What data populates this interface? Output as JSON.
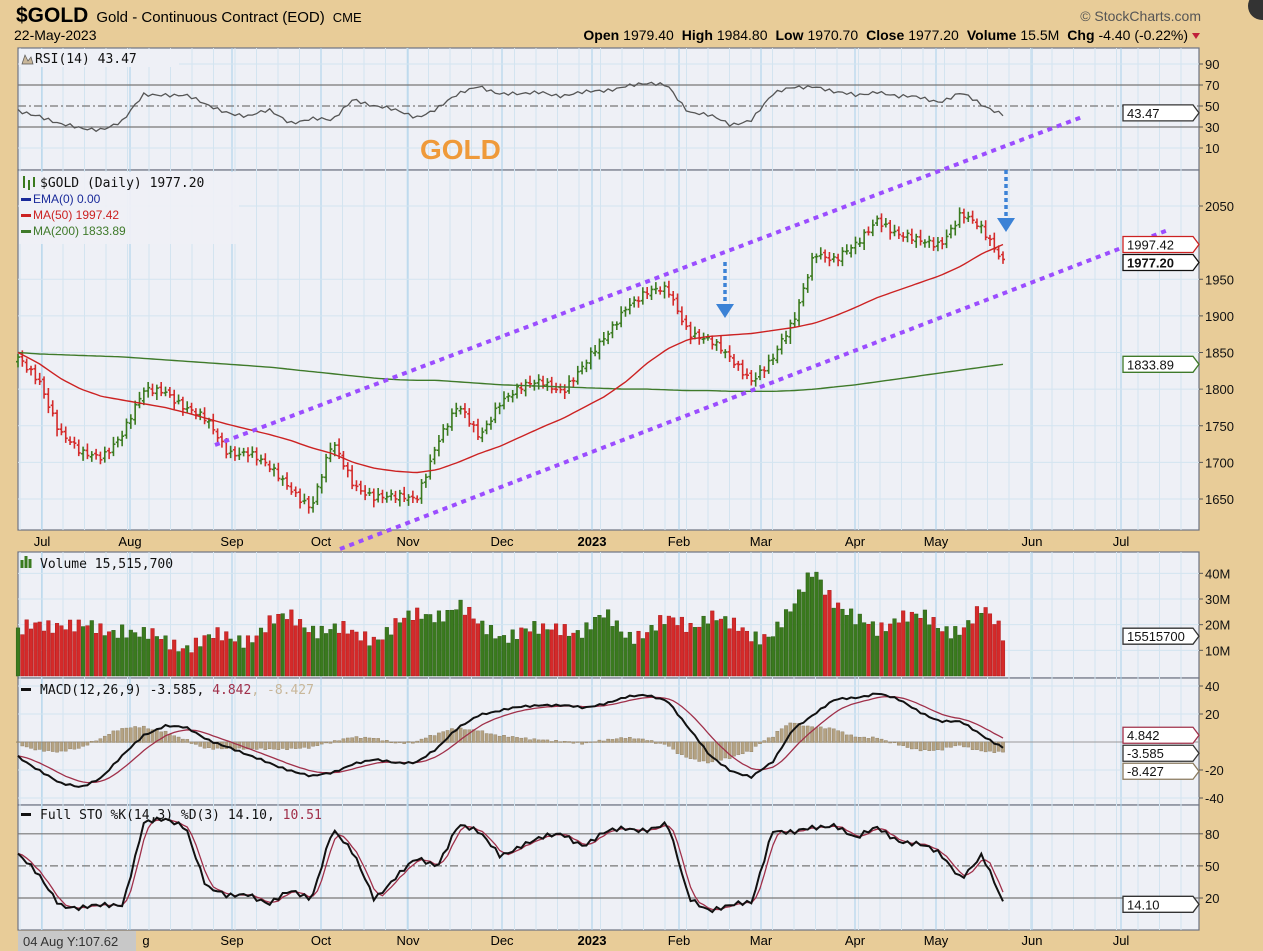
{
  "header": {
    "symbol": "$GOLD",
    "name": "Gold - Continuous Contract (EOD)",
    "exchange": "CME",
    "date": "22-May-2023",
    "copyright": "© StockCharts.com",
    "open_label": "Open",
    "open": "1979.40",
    "high_label": "High",
    "high": "1984.80",
    "low_label": "Low",
    "low": "1970.70",
    "close_label": "Close",
    "close": "1977.20",
    "volume_label": "Volume",
    "volume": "15.5M",
    "chg_label": "Chg",
    "chg": "-4.40 (-0.22%)"
  },
  "annotation": "GOLD",
  "crosshair_readout": "04 Aug Y:107.62",
  "colors": {
    "up": "#3a7a1e",
    "down": "#d42a2a",
    "ma50": "#cc2222",
    "ma200": "#3f7a2a",
    "trend": "#9b4dff",
    "arrow": "#3b82d6",
    "bg": "#e8cc98",
    "panel": "#eef0f6"
  },
  "chart_data": {
    "type": "line",
    "x_tick_labels": [
      "Jul",
      "Aug",
      "Sep",
      "Oct",
      "Nov",
      "Dec",
      "2023",
      "Feb",
      "Mar",
      "Apr",
      "May",
      "Jun",
      "Jul"
    ],
    "bottom_tick_labels": [
      "g",
      "Sep",
      "Oct",
      "Nov",
      "Dec",
      "2023",
      "Feb",
      "Mar",
      "Apr",
      "May",
      "Jun",
      "Jul"
    ],
    "price": {
      "legend": "$GOLD (Daily) 1977.20",
      "ema_legend": "EMA(0) 0.00",
      "ma50_legend": "MA(50) 1997.42",
      "ma200_legend": "MA(200) 1833.89",
      "last_close": "1977.20",
      "last_ma50": "1997.42",
      "last_ma200": "1833.89",
      "ylim": [
        1610,
        2100
      ],
      "ticks": [
        "2050",
        "1950",
        "1900",
        "1850",
        "1800",
        "1750",
        "1700",
        "1650"
      ],
      "close": [
        1840,
        1815,
        1740,
        1710,
        1710,
        1740,
        1795,
        1800,
        1775,
        1755,
        1715,
        1715,
        1690,
        1665,
        1640,
        1725,
        1670,
        1655,
        1650,
        1650,
        1730,
        1775,
        1735,
        1785,
        1800,
        1810,
        1800,
        1830,
        1870,
        1915,
        1930,
        1935,
        1880,
        1865,
        1840,
        1815,
        1840,
        1890,
        1990,
        1975,
        1995,
        2035,
        2010,
        2000,
        2000,
        2040,
        2015,
        1977
      ],
      "ma50": [
        1850,
        1835,
        1815,
        1800,
        1790,
        1785,
        1780,
        1775,
        1768,
        1760,
        1752,
        1745,
        1738,
        1730,
        1720,
        1712,
        1700,
        1692,
        1688,
        1686,
        1690,
        1700,
        1712,
        1722,
        1735,
        1748,
        1760,
        1775,
        1790,
        1810,
        1835,
        1855,
        1868,
        1872,
        1874,
        1876,
        1880,
        1884,
        1890,
        1900,
        1912,
        1925,
        1935,
        1945,
        1955,
        1968,
        1985,
        1997.42
      ],
      "ma200": [
        1850,
        1848,
        1847,
        1846,
        1845,
        1844,
        1842,
        1840,
        1838,
        1836,
        1834,
        1832,
        1830,
        1827,
        1824,
        1821,
        1818,
        1815,
        1813,
        1812,
        1812,
        1810,
        1808,
        1806,
        1805,
        1804,
        1803,
        1802,
        1801,
        1800,
        1800,
        1799,
        1798,
        1798,
        1797,
        1797,
        1797,
        1798,
        1800,
        1803,
        1806,
        1810,
        1814,
        1818,
        1822,
        1826,
        1830,
        1833.89
      ]
    },
    "rsi": {
      "legend": "RSI(14) 43.47",
      "last": "43.47",
      "ticks": [
        "90",
        "70",
        "50",
        "30",
        "10"
      ],
      "values": [
        45,
        42,
        32,
        28,
        29,
        35,
        60,
        62,
        60,
        50,
        45,
        40,
        45,
        35,
        38,
        35,
        58,
        50,
        45,
        40,
        48,
        60,
        70,
        62,
        60,
        64,
        60,
        62,
        65,
        70,
        70,
        70,
        45,
        40,
        32,
        38,
        60,
        68,
        70,
        62,
        60,
        65,
        58,
        58,
        55,
        62,
        50,
        43.47
      ]
    },
    "volume": {
      "legend": "Volume 15,515,700",
      "last": "15515700",
      "ticks": [
        "40M",
        "30M",
        "20M",
        "10M"
      ],
      "values_millions": [
        15,
        20,
        22,
        18,
        17,
        20,
        15,
        13,
        13,
        14,
        14,
        16,
        20,
        22,
        20,
        18,
        15,
        16,
        20,
        22,
        25,
        28,
        18,
        17,
        18,
        16,
        20,
        18,
        22,
        17,
        18,
        20,
        20,
        25,
        18,
        16,
        18,
        25,
        42,
        30,
        20,
        18,
        25,
        22,
        18,
        20,
        25,
        15.5
      ]
    },
    "macd": {
      "legend_name": "MACD(12,26,9)",
      "macd_value": "-3.585",
      "signal_value": "4.842",
      "hist_value": "-8.427",
      "ticks": [
        "40",
        "20",
        "-20",
        "-40"
      ],
      "macd": [
        -10,
        -20,
        -30,
        -32,
        -25,
        -10,
        5,
        12,
        10,
        2,
        -3,
        -10,
        -15,
        -20,
        -25,
        -22,
        -15,
        -13,
        -15,
        -14,
        -5,
        10,
        20,
        22,
        25,
        27,
        26,
        24,
        28,
        32,
        33,
        30,
        10,
        -10,
        -20,
        -25,
        -15,
        10,
        20,
        30,
        32,
        35,
        30,
        22,
        15,
        14,
        5,
        -3.585
      ]
    },
    "sto": {
      "legend_name": "Full STO %K(14,3) %D(3)",
      "k_value": "14.10",
      "d_value": "10.51",
      "ticks": [
        "80",
        "50",
        "20"
      ],
      "k": [
        60,
        40,
        15,
        10,
        12,
        15,
        90,
        92,
        88,
        30,
        20,
        25,
        15,
        25,
        20,
        85,
        60,
        20,
        40,
        55,
        50,
        90,
        80,
        60,
        70,
        75,
        80,
        70,
        80,
        85,
        85,
        88,
        20,
        10,
        12,
        15,
        85,
        80,
        85,
        90,
        75,
        85,
        75,
        70,
        60,
        40,
        60,
        14.1
      ]
    }
  }
}
